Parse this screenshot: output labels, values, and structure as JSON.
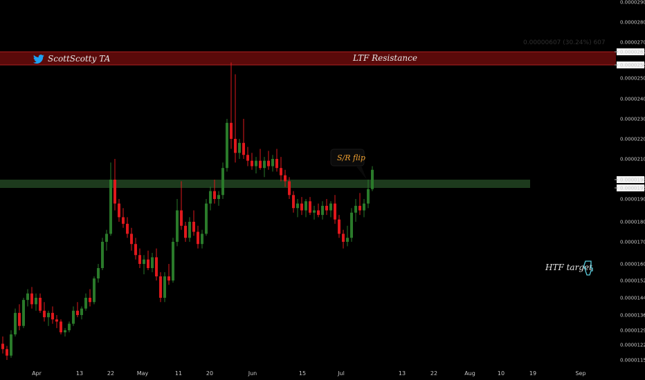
{
  "chart_data": {
    "type": "candlestick",
    "author": "ScottScotty TA",
    "y_axis": {
      "ticks": [
        "0.00002900",
        "0.00002800",
        "0.00002700",
        "0.00002629",
        "0.00002569",
        "0.00002500",
        "0.00002400",
        "0.00002300",
        "0.00002200",
        "0.00002100",
        "0.00001986",
        "0.00001956",
        "0.00001900",
        "0.00001800",
        "0.00001700",
        "0.00001600",
        "0.00001520",
        "0.00001440",
        "0.00001360",
        "0.00001290",
        "0.00001220",
        "0.00001150"
      ],
      "highlighted": [
        "0.00002629",
        "0.00002569",
        "0.00001986",
        "0.00001956"
      ]
    },
    "x_axis": {
      "ticks": [
        "Apr",
        "13",
        "22",
        "May",
        "11",
        "20",
        "Jun",
        "15",
        "Jul",
        "13",
        "22",
        "Aug",
        "10",
        "19",
        "Sep"
      ]
    },
    "zones": [
      {
        "label": "LTF Resistance",
        "low": 2.569e-05,
        "high": 2.629e-05,
        "color": "#5a0a0a"
      },
      {
        "label": "",
        "low": 1.956e-05,
        "high": 1.986e-05,
        "color": "#1d3a1d"
      }
    ],
    "measure_label": "0.00000607 (30.24%) 607",
    "annotations": {
      "sr_flip": "S/R flip",
      "htf_target": "HTF target"
    },
    "colors": {
      "up": "#2a7a2a",
      "down": "#e0181c",
      "up_bright": "#3fae3f"
    },
    "candles": [
      {
        "o": 1.225e-05,
        "h": 1.26e-05,
        "l": 1.18e-05,
        "c": 1.2e-05
      },
      {
        "o": 1.2e-05,
        "h": 1.215e-05,
        "l": 1.15e-05,
        "c": 1.17e-05
      },
      {
        "o": 1.17e-05,
        "h": 1.29e-05,
        "l": 1.16e-05,
        "c": 1.27e-05
      },
      {
        "o": 1.27e-05,
        "h": 1.39e-05,
        "l": 1.26e-05,
        "c": 1.37e-05
      },
      {
        "o": 1.37e-05,
        "h": 1.41e-05,
        "l": 1.29e-05,
        "c": 1.31e-05
      },
      {
        "o": 1.31e-05,
        "h": 1.44e-05,
        "l": 1.3e-05,
        "c": 1.43e-05
      },
      {
        "o": 1.43e-05,
        "h": 1.48e-05,
        "l": 1.4e-05,
        "c": 1.46e-05
      },
      {
        "o": 1.46e-05,
        "h": 1.49e-05,
        "l": 1.39e-05,
        "c": 1.41e-05
      },
      {
        "o": 1.41e-05,
        "h": 1.46e-05,
        "l": 1.38e-05,
        "c": 1.44e-05
      },
      {
        "o": 1.44e-05,
        "h": 1.46e-05,
        "l": 1.37e-05,
        "c": 1.38e-05
      },
      {
        "o": 1.38e-05,
        "h": 1.42e-05,
        "l": 1.33e-05,
        "c": 1.35e-05
      },
      {
        "o": 1.35e-05,
        "h": 1.38e-05,
        "l": 1.31e-05,
        "c": 1.37e-05
      },
      {
        "o": 1.37e-05,
        "h": 1.4e-05,
        "l": 1.32e-05,
        "c": 1.34e-05
      },
      {
        "o": 1.34e-05,
        "h": 1.36e-05,
        "l": 1.3e-05,
        "c": 1.33e-05
      },
      {
        "o": 1.33e-05,
        "h": 1.34e-05,
        "l": 1.27e-05,
        "c": 1.28e-05
      },
      {
        "o": 1.28e-05,
        "h": 1.3e-05,
        "l": 1.26e-05,
        "c": 1.29e-05
      },
      {
        "o": 1.29e-05,
        "h": 1.33e-05,
        "l": 1.28e-05,
        "c": 1.32e-05
      },
      {
        "o": 1.32e-05,
        "h": 1.4e-05,
        "l": 1.31e-05,
        "c": 1.38e-05
      },
      {
        "o": 1.38e-05,
        "h": 1.42e-05,
        "l": 1.35e-05,
        "c": 1.36e-05
      },
      {
        "o": 1.36e-05,
        "h": 1.4e-05,
        "l": 1.34e-05,
        "c": 1.39e-05
      },
      {
        "o": 1.39e-05,
        "h": 1.46e-05,
        "l": 1.38e-05,
        "c": 1.44e-05
      },
      {
        "o": 1.44e-05,
        "h": 1.48e-05,
        "l": 1.4e-05,
        "c": 1.42e-05
      },
      {
        "o": 1.42e-05,
        "h": 1.54e-05,
        "l": 1.41e-05,
        "c": 1.53e-05
      },
      {
        "o": 1.53e-05,
        "h": 1.6e-05,
        "l": 1.51e-05,
        "c": 1.58e-05
      },
      {
        "o": 1.58e-05,
        "h": 1.72e-05,
        "l": 1.57e-05,
        "c": 1.7e-05
      },
      {
        "o": 1.7e-05,
        "h": 1.76e-05,
        "l": 1.66e-05,
        "c": 1.74e-05
      },
      {
        "o": 1.74e-05,
        "h": 2.08e-05,
        "l": 1.73e-05,
        "c": 1.986e-05
      },
      {
        "o": 1.986e-05,
        "h": 2.1e-05,
        "l": 1.85e-05,
        "c": 1.88e-05
      },
      {
        "o": 1.88e-05,
        "h": 1.9e-05,
        "l": 1.8e-05,
        "c": 1.82e-05
      },
      {
        "o": 1.82e-05,
        "h": 1.86e-05,
        "l": 1.77e-05,
        "c": 1.79e-05
      },
      {
        "o": 1.79e-05,
        "h": 1.82e-05,
        "l": 1.72e-05,
        "c": 1.74e-05
      },
      {
        "o": 1.74e-05,
        "h": 1.77e-05,
        "l": 1.66e-05,
        "c": 1.69e-05
      },
      {
        "o": 1.69e-05,
        "h": 1.72e-05,
        "l": 1.62e-05,
        "c": 1.64e-05
      },
      {
        "o": 1.64e-05,
        "h": 1.67e-05,
        "l": 1.58e-05,
        "c": 1.6e-05
      },
      {
        "o": 1.6e-05,
        "h": 1.64e-05,
        "l": 1.55e-05,
        "c": 1.62e-05
      },
      {
        "o": 1.62e-05,
        "h": 1.66e-05,
        "l": 1.57e-05,
        "c": 1.58e-05
      },
      {
        "o": 1.58e-05,
        "h": 1.65e-05,
        "l": 1.56e-05,
        "c": 1.63e-05
      },
      {
        "o": 1.63e-05,
        "h": 1.67e-05,
        "l": 1.52e-05,
        "c": 1.54e-05
      },
      {
        "o": 1.54e-05,
        "h": 1.56e-05,
        "l": 1.42e-05,
        "c": 1.44e-05
      },
      {
        "o": 1.44e-05,
        "h": 1.56e-05,
        "l": 1.42e-05,
        "c": 1.54e-05
      },
      {
        "o": 1.54e-05,
        "h": 1.6e-05,
        "l": 1.5e-05,
        "c": 1.52e-05
      },
      {
        "o": 1.52e-05,
        "h": 1.72e-05,
        "l": 1.51e-05,
        "c": 1.7e-05
      },
      {
        "o": 1.7e-05,
        "h": 1.9e-05,
        "l": 1.68e-05,
        "c": 1.85e-05
      },
      {
        "o": 1.85e-05,
        "h": 1.98e-05,
        "l": 1.76e-05,
        "c": 1.78e-05
      },
      {
        "o": 1.78e-05,
        "h": 1.8e-05,
        "l": 1.7e-05,
        "c": 1.72e-05
      },
      {
        "o": 1.72e-05,
        "h": 1.82e-05,
        "l": 1.7e-05,
        "c": 1.8e-05
      },
      {
        "o": 1.8e-05,
        "h": 1.85e-05,
        "l": 1.73e-05,
        "c": 1.75e-05
      },
      {
        "o": 1.75e-05,
        "h": 1.78e-05,
        "l": 1.67e-05,
        "c": 1.69e-05
      },
      {
        "o": 1.69e-05,
        "h": 1.76e-05,
        "l": 1.67e-05,
        "c": 1.74e-05
      },
      {
        "o": 1.74e-05,
        "h": 1.9e-05,
        "l": 1.73e-05,
        "c": 1.88e-05
      },
      {
        "o": 1.88e-05,
        "h": 1.96e-05,
        "l": 1.85e-05,
        "c": 1.94e-05
      },
      {
        "o": 1.94e-05,
        "h": 1.986e-05,
        "l": 1.88e-05,
        "c": 1.9e-05
      },
      {
        "o": 1.9e-05,
        "h": 1.94e-05,
        "l": 1.87e-05,
        "c": 1.92e-05
      },
      {
        "o": 1.92e-05,
        "h": 2.08e-05,
        "l": 1.9e-05,
        "c": 2.05e-05
      },
      {
        "o": 2.05e-05,
        "h": 2.3e-05,
        "l": 2.03e-05,
        "c": 2.28e-05
      },
      {
        "o": 2.28e-05,
        "h": 2.58e-05,
        "l": 2.15e-05,
        "c": 2.2e-05
      },
      {
        "o": 2.2e-05,
        "h": 2.52e-05,
        "l": 2.08e-05,
        "c": 2.13e-05
      },
      {
        "o": 2.13e-05,
        "h": 2.2e-05,
        "l": 2.1e-05,
        "c": 2.18e-05
      },
      {
        "o": 2.18e-05,
        "h": 2.3e-05,
        "l": 2.1e-05,
        "c": 2.12e-05
      },
      {
        "o": 2.12e-05,
        "h": 2.16e-05,
        "l": 2.06e-05,
        "c": 2.09e-05
      },
      {
        "o": 2.09e-05,
        "h": 2.13e-05,
        "l": 2.04e-05,
        "c": 2.06e-05
      },
      {
        "o": 2.06e-05,
        "h": 2.11e-05,
        "l": 2.02e-05,
        "c": 2.09e-05
      },
      {
        "o": 2.09e-05,
        "h": 2.15e-05,
        "l": 2.04e-05,
        "c": 2.05e-05
      },
      {
        "o": 2.05e-05,
        "h": 2.11e-05,
        "l": 2e-05,
        "c": 2.09e-05
      },
      {
        "o": 2.09e-05,
        "h": 2.14e-05,
        "l": 2.04e-05,
        "c": 2.06e-05
      },
      {
        "o": 2.06e-05,
        "h": 2.12e-05,
        "l": 2.03e-05,
        "c": 2.1e-05
      },
      {
        "o": 2.1e-05,
        "h": 2.15e-05,
        "l": 2.03e-05,
        "c": 2.05e-05
      },
      {
        "o": 2.05e-05,
        "h": 2.11e-05,
        "l": 1.98e-05,
        "c": 2.01e-05
      },
      {
        "o": 2.01e-05,
        "h": 2.04e-05,
        "l": 1.96e-05,
        "c": 1.98e-05
      },
      {
        "o": 1.98e-05,
        "h": 2e-05,
        "l": 1.9e-05,
        "c": 1.92e-05
      },
      {
        "o": 1.92e-05,
        "h": 1.94e-05,
        "l": 1.84e-05,
        "c": 1.86e-05
      },
      {
        "o": 1.86e-05,
        "h": 1.9e-05,
        "l": 1.82e-05,
        "c": 1.88e-05
      },
      {
        "o": 1.88e-05,
        "h": 1.91e-05,
        "l": 1.83e-05,
        "c": 1.85e-05
      },
      {
        "o": 1.85e-05,
        "h": 1.9e-05,
        "l": 1.82e-05,
        "c": 1.89e-05
      },
      {
        "o": 1.89e-05,
        "h": 1.91e-05,
        "l": 1.83e-05,
        "c": 1.84e-05
      },
      {
        "o": 1.84e-05,
        "h": 1.87e-05,
        "l": 1.81e-05,
        "c": 1.85e-05
      },
      {
        "o": 1.85e-05,
        "h": 1.88e-05,
        "l": 1.82e-05,
        "c": 1.83e-05
      },
      {
        "o": 1.83e-05,
        "h": 1.89e-05,
        "l": 1.81e-05,
        "c": 1.87e-05
      },
      {
        "o": 1.87e-05,
        "h": 1.9e-05,
        "l": 1.83e-05,
        "c": 1.85e-05
      },
      {
        "o": 1.85e-05,
        "h": 1.89e-05,
        "l": 1.82e-05,
        "c": 1.88e-05
      },
      {
        "o": 1.88e-05,
        "h": 1.92e-05,
        "l": 1.79e-05,
        "c": 1.81e-05
      },
      {
        "o": 1.81e-05,
        "h": 1.83e-05,
        "l": 1.72e-05,
        "c": 1.74e-05
      },
      {
        "o": 1.74e-05,
        "h": 1.76e-05,
        "l": 1.67e-05,
        "c": 1.7e-05
      },
      {
        "o": 1.7e-05,
        "h": 1.78e-05,
        "l": 1.68e-05,
        "c": 1.72e-05
      },
      {
        "o": 1.72e-05,
        "h": 1.86e-05,
        "l": 1.7e-05,
        "c": 1.84e-05
      },
      {
        "o": 1.84e-05,
        "h": 1.9e-05,
        "l": 1.8e-05,
        "c": 1.87e-05
      },
      {
        "o": 1.87e-05,
        "h": 1.93e-05,
        "l": 1.83e-05,
        "c": 1.85e-05
      },
      {
        "o": 1.85e-05,
        "h": 1.9e-05,
        "l": 1.82e-05,
        "c": 1.88e-05
      },
      {
        "o": 1.88e-05,
        "h": 1.986e-05,
        "l": 1.86e-05,
        "c": 1.95e-05
      },
      {
        "o": 1.95e-05,
        "h": 2.06e-05,
        "l": 1.94e-05,
        "c": 2.04e-05
      }
    ]
  }
}
